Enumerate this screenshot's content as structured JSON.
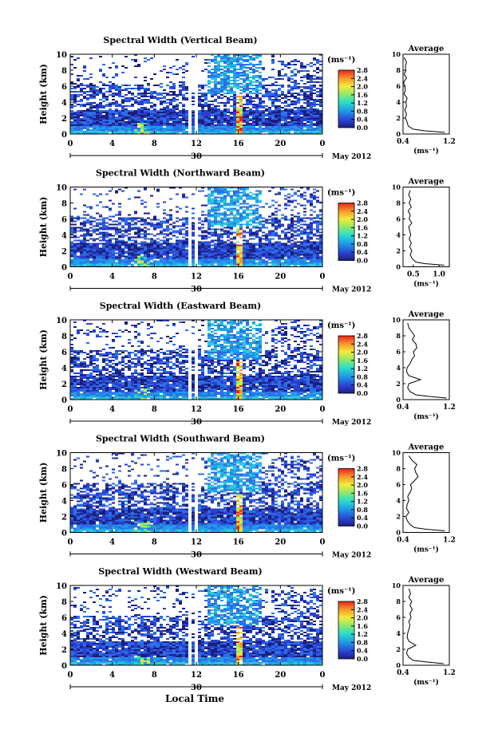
{
  "figure": {
    "xlabel": "Local Time",
    "date_label": "May 2012",
    "day_label": "30",
    "colorbar_unit": "(ms⁻¹)",
    "average_title": "Average",
    "average_xlabel": "(ms⁻¹)"
  },
  "chart_data": [
    {
      "type": "heatmap",
      "title": "Spectral Width (Vertical Beam)",
      "ylabel": "Height (km)",
      "xlabel": "Local Time",
      "xlim": [
        0,
        24
      ],
      "ylim": [
        0,
        10
      ],
      "x_ticks": [
        "0",
        "4",
        "8",
        "12",
        "16",
        "20",
        "0"
      ],
      "y_ticks": [
        "0",
        "2",
        "4",
        "6",
        "8",
        "10"
      ],
      "colorbar": {
        "range": [
          0.0,
          2.8
        ],
        "ticks": [
          "0.0",
          "0.4",
          "0.8",
          "1.2",
          "1.6",
          "2.0",
          "2.4",
          "2.8"
        ]
      },
      "average_profile": {
        "xlim": [
          0.4,
          1.2
        ],
        "x_ticks": [
          "0.4",
          "1.2"
        ],
        "y_ticks": [
          "0",
          "2",
          "4",
          "6",
          "8",
          "10"
        ],
        "x": [
          1.12,
          0.78,
          0.58,
          0.49,
          0.47,
          0.44,
          0.46,
          0.43,
          0.46,
          0.45,
          0.47,
          0.42,
          0.44,
          0.43,
          0.41,
          0.46,
          0.42,
          0.45,
          0.44,
          0.46,
          0.42
        ],
        "y": [
          0.2,
          0.4,
          0.6,
          1.0,
          1.5,
          2.0,
          2.5,
          3.0,
          3.5,
          4.0,
          4.5,
          5.0,
          5.5,
          6.0,
          6.5,
          7.0,
          7.5,
          8.0,
          8.5,
          9.0,
          9.6
        ]
      }
    },
    {
      "type": "heatmap",
      "title": "Spectral Width (Northward Beam)",
      "ylabel": "Height (km)",
      "xlabel": "Local Time",
      "xlim": [
        0,
        24
      ],
      "ylim": [
        0,
        10
      ],
      "x_ticks": [
        "0",
        "4",
        "8",
        "12",
        "16",
        "20",
        "0"
      ],
      "y_ticks": [
        "0",
        "2",
        "4",
        "6",
        "8",
        "10"
      ],
      "colorbar": {
        "range": [
          0.0,
          2.8
        ],
        "ticks": [
          "0.0",
          "0.4",
          "0.8",
          "1.2",
          "1.6",
          "2.0",
          "2.4",
          "2.8"
        ]
      },
      "average_profile": {
        "xlim": [
          0.3,
          1.2
        ],
        "x_ticks": [
          "0.5",
          "1.0"
        ],
        "y_ticks": [
          "0",
          "2",
          "4",
          "6",
          "8",
          "10"
        ],
        "x": [
          1.1,
          0.72,
          0.55,
          0.48,
          0.44,
          0.47,
          0.43,
          0.46,
          0.42,
          0.45,
          0.43,
          0.41,
          0.47,
          0.42,
          0.44,
          0.4,
          0.46,
          0.42,
          0.45,
          0.41,
          0.44
        ],
        "y": [
          0.2,
          0.4,
          0.6,
          1.0,
          1.5,
          2.0,
          2.5,
          3.0,
          3.5,
          4.0,
          4.5,
          5.0,
          5.5,
          6.0,
          6.5,
          7.0,
          7.5,
          8.0,
          8.5,
          9.0,
          9.6
        ]
      }
    },
    {
      "type": "heatmap",
      "title": "Spectral Width (Eastward Beam)",
      "ylabel": "Height (km)",
      "xlabel": "Local Time",
      "xlim": [
        0,
        24
      ],
      "ylim": [
        0,
        10
      ],
      "x_ticks": [
        "0",
        "4",
        "8",
        "12",
        "16",
        "20",
        "0"
      ],
      "y_ticks": [
        "0",
        "2",
        "4",
        "6",
        "8",
        "10"
      ],
      "colorbar": {
        "range": [
          0.0,
          2.8
        ],
        "ticks": [
          "0.0",
          "0.4",
          "0.8",
          "1.2",
          "1.6",
          "2.0",
          "2.4",
          "2.8"
        ]
      },
      "average_profile": {
        "xlim": [
          0.4,
          1.2
        ],
        "x_ticks": [
          "0.4",
          "1.2"
        ],
        "y_ticks": [
          "0",
          "2",
          "4",
          "6",
          "8",
          "10"
        ],
        "x": [
          1.15,
          0.85,
          0.62,
          0.52,
          0.48,
          0.5,
          0.7,
          0.5,
          0.46,
          0.47,
          0.52,
          0.55,
          0.6,
          0.58,
          0.64,
          0.62,
          0.56,
          0.6,
          0.55,
          0.5,
          0.48
        ],
        "y": [
          0.2,
          0.4,
          0.6,
          1.0,
          1.5,
          2.0,
          2.5,
          3.0,
          3.5,
          4.0,
          4.5,
          5.0,
          5.5,
          6.0,
          6.5,
          7.0,
          7.5,
          8.0,
          8.5,
          9.0,
          9.6
        ]
      }
    },
    {
      "type": "heatmap",
      "title": "Spectral Width (Southward Beam)",
      "ylabel": "Height (km)",
      "xlabel": "Local Time",
      "xlim": [
        0,
        24
      ],
      "ylim": [
        0,
        10
      ],
      "x_ticks": [
        "0",
        "4",
        "8",
        "12",
        "16",
        "20",
        "0"
      ],
      "y_ticks": [
        "0",
        "2",
        "4",
        "6",
        "8",
        "10"
      ],
      "colorbar": {
        "range": [
          0.0,
          2.8
        ],
        "ticks": [
          "0.0",
          "0.4",
          "0.8",
          "1.2",
          "1.6",
          "2.0",
          "2.4",
          "2.8"
        ]
      },
      "average_profile": {
        "xlim": [
          0.4,
          1.2
        ],
        "x_ticks": [
          "0.4",
          "1.2"
        ],
        "y_ticks": [
          "0",
          "2",
          "4",
          "6",
          "8",
          "10"
        ],
        "x": [
          1.12,
          0.8,
          0.6,
          0.52,
          0.47,
          0.45,
          0.5,
          0.46,
          0.47,
          0.5,
          0.48,
          0.52,
          0.55,
          0.53,
          0.6,
          0.66,
          0.62,
          0.6,
          0.64,
          0.56,
          0.5
        ],
        "y": [
          0.2,
          0.4,
          0.6,
          1.0,
          1.5,
          2.0,
          2.5,
          3.0,
          3.5,
          4.0,
          4.5,
          5.0,
          5.5,
          6.0,
          6.5,
          7.0,
          7.5,
          8.0,
          8.5,
          9.0,
          9.6
        ]
      }
    },
    {
      "type": "heatmap",
      "title": "Spectral Width (Westward Beam)",
      "ylabel": "Height (km)",
      "xlabel": "Local Time",
      "xlim": [
        0,
        24
      ],
      "ylim": [
        0,
        10
      ],
      "x_ticks": [
        "0",
        "4",
        "8",
        "12",
        "16",
        "20",
        "0"
      ],
      "y_ticks": [
        "0",
        "2",
        "4",
        "6",
        "8",
        "10"
      ],
      "colorbar": {
        "range": [
          0.0,
          2.8
        ],
        "ticks": [
          "0.0",
          "0.4",
          "0.8",
          "1.2",
          "1.6",
          "2.0",
          "2.4",
          "2.8"
        ]
      },
      "average_profile": {
        "xlim": [
          0.4,
          1.2
        ],
        "x_ticks": [
          "0.4",
          "1.2"
        ],
        "y_ticks": [
          "0",
          "2",
          "4",
          "6",
          "8",
          "10"
        ],
        "x": [
          1.1,
          0.82,
          0.58,
          0.5,
          0.46,
          0.48,
          0.62,
          0.5,
          0.47,
          0.48,
          0.5,
          0.52,
          0.5,
          0.54,
          0.52,
          0.56,
          0.52,
          0.55,
          0.5,
          0.53,
          0.5
        ],
        "y": [
          0.2,
          0.4,
          0.6,
          1.0,
          1.5,
          2.0,
          2.5,
          3.0,
          3.5,
          4.0,
          4.5,
          5.0,
          5.5,
          6.0,
          6.5,
          7.0,
          7.5,
          8.0,
          8.5,
          9.0,
          9.6
        ]
      }
    }
  ]
}
